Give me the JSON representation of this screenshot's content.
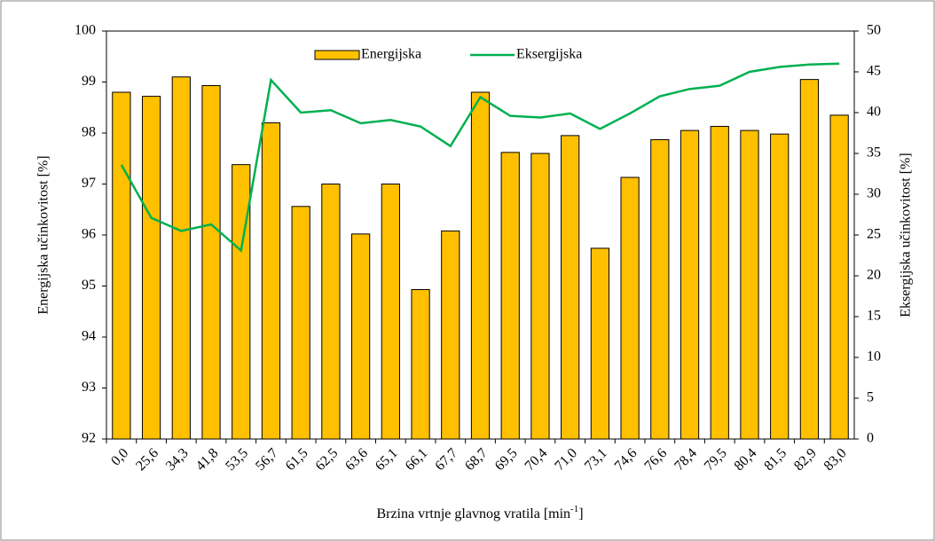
{
  "chart_data": {
    "type": "bar",
    "categories": [
      "0,0",
      "25,6",
      "34,3",
      "41,8",
      "53,5",
      "56,7",
      "61,5",
      "62,5",
      "63,6",
      "65,1",
      "66,1",
      "67,7",
      "68,7",
      "69,5",
      "70,4",
      "71,0",
      "73,1",
      "74,6",
      "76,6",
      "78,4",
      "79,5",
      "80,4",
      "81,5",
      "82,9",
      "83,0"
    ],
    "series": [
      {
        "name": "Energijska",
        "type": "bar",
        "color": "#ffc000",
        "values": [
          98.8,
          98.72,
          99.1,
          98.93,
          97.38,
          98.2,
          96.56,
          97.0,
          96.02,
          97.0,
          94.93,
          96.08,
          98.8,
          97.62,
          97.6,
          97.95,
          95.74,
          97.13,
          97.87,
          98.05,
          98.13,
          98.05,
          97.98,
          99.05,
          98.35
        ]
      },
      {
        "name": "Eksergijska",
        "type": "line",
        "axis": "y2",
        "color": "#00b050",
        "values": [
          33.6,
          27.1,
          25.5,
          26.3,
          23.1,
          44.0,
          40.0,
          40.3,
          38.7,
          39.1,
          38.3,
          35.9,
          41.9,
          39.6,
          39.4,
          39.9,
          38.0,
          39.9,
          42.0,
          42.9,
          43.3,
          45.0,
          45.6,
          45.9,
          46.0
        ]
      }
    ],
    "ylabel": "Energijska učinkovitost [%]",
    "y2label": "Eksergijska učinkovitost [%]",
    "xlabel": "Brzina vrtnje glavnog vratila [min",
    "xlabel_sup": "-1",
    "xlabel_end": "]",
    "ylim": [
      92,
      100
    ],
    "yticks": [
      92,
      93,
      94,
      95,
      96,
      97,
      98,
      99,
      100
    ],
    "y2lim": [
      0,
      50
    ],
    "y2ticks": [
      0,
      5,
      10,
      15,
      20,
      25,
      30,
      35,
      40,
      45,
      50
    ],
    "grid": false,
    "legend": "top"
  }
}
